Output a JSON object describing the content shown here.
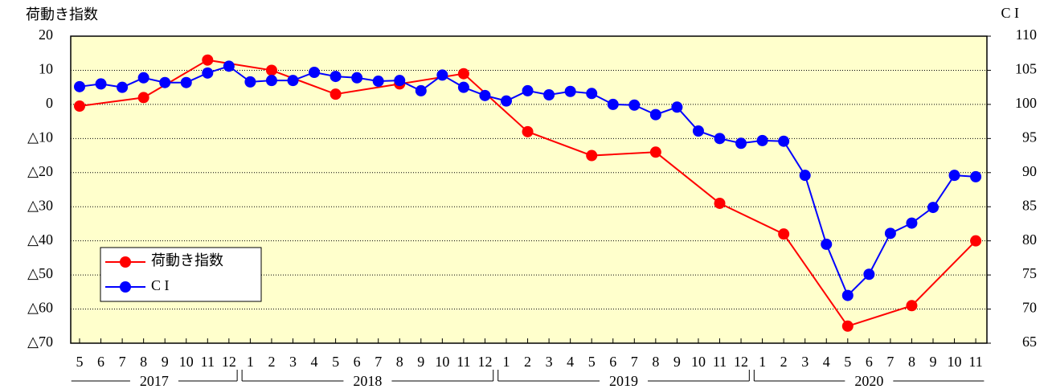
{
  "chart_data": {
    "type": "line",
    "y_label_left": "荷動き指数",
    "y_label_right": "C I",
    "x": [
      "2017-05",
      "2017-06",
      "2017-07",
      "2017-08",
      "2017-09",
      "2017-10",
      "2017-11",
      "2017-12",
      "2018-01",
      "2018-02",
      "2018-03",
      "2018-04",
      "2018-05",
      "2018-06",
      "2018-07",
      "2018-08",
      "2018-09",
      "2018-10",
      "2018-11",
      "2018-12",
      "2019-01",
      "2019-02",
      "2019-03",
      "2019-04",
      "2019-05",
      "2019-06",
      "2019-07",
      "2019-08",
      "2019-09",
      "2019-10",
      "2019-11",
      "2019-12",
      "2020-01",
      "2020-02",
      "2020-03",
      "2020-04",
      "2020-05",
      "2020-06",
      "2020-07",
      "2020-08",
      "2020-09",
      "2020-10",
      "2020-11"
    ],
    "xticks": [
      {
        "value": "2017-05",
        "label": "5"
      },
      {
        "value": "2017-06",
        "label": "6"
      },
      {
        "value": "2017-07",
        "label": "7"
      },
      {
        "value": "2017-08",
        "label": "8"
      },
      {
        "value": "2017-09",
        "label": "9"
      },
      {
        "value": "2017-10",
        "label": "10"
      },
      {
        "value": "2017-11",
        "label": "11"
      },
      {
        "value": "2017-12",
        "label": "12"
      },
      {
        "value": "2018-01",
        "label": "1"
      },
      {
        "value": "2018-02",
        "label": "2"
      },
      {
        "value": "2018-03",
        "label": "3"
      },
      {
        "value": "2018-04",
        "label": "4"
      },
      {
        "value": "2018-05",
        "label": "5"
      },
      {
        "value": "2018-06",
        "label": "6"
      },
      {
        "value": "2018-07",
        "label": "7"
      },
      {
        "value": "2018-08",
        "label": "8"
      },
      {
        "value": "2018-09",
        "label": "9"
      },
      {
        "value": "2018-10",
        "label": "10"
      },
      {
        "value": "2018-11",
        "label": "11"
      },
      {
        "value": "2018-12",
        "label": "12"
      },
      {
        "value": "2019-01",
        "label": "1"
      },
      {
        "value": "2019-02",
        "label": "2"
      },
      {
        "value": "2019-03",
        "label": "3"
      },
      {
        "value": "2019-04",
        "label": "4"
      },
      {
        "value": "2019-05",
        "label": "5"
      },
      {
        "value": "2019-06",
        "label": "6"
      },
      {
        "value": "2019-07",
        "label": "7"
      },
      {
        "value": "2019-08",
        "label": "8"
      },
      {
        "value": "2019-09",
        "label": "9"
      },
      {
        "value": "2019-10",
        "label": "10"
      },
      {
        "value": "2019-11",
        "label": "11"
      },
      {
        "value": "2019-12",
        "label": "12"
      },
      {
        "value": "2020-01",
        "label": "1"
      },
      {
        "value": "2020-02",
        "label": "2"
      },
      {
        "value": "2020-03",
        "label": "3"
      },
      {
        "value": "2020-04",
        "label": "4"
      },
      {
        "value": "2020-05",
        "label": "5"
      },
      {
        "value": "2020-06",
        "label": "6"
      },
      {
        "value": "2020-07",
        "label": "7"
      },
      {
        "value": "2020-08",
        "label": "8"
      },
      {
        "value": "2020-09",
        "label": "9"
      },
      {
        "value": "2020-10",
        "label": "10"
      },
      {
        "value": "2020-11",
        "label": "11"
      }
    ],
    "year_groups": [
      "2017",
      "2018",
      "2019",
      "2020"
    ],
    "ylim": [
      -70,
      20
    ],
    "yticks": [
      20,
      10,
      0,
      {
        "value": -10,
        "label": "△10"
      },
      {
        "value": -20,
        "label": "△20"
      },
      {
        "value": -30,
        "label": "△30"
      },
      {
        "value": -40,
        "label": "△40"
      },
      {
        "value": -50,
        "label": "△50"
      },
      {
        "value": -60,
        "label": "△60"
      },
      {
        "value": -70,
        "label": "△70"
      }
    ],
    "y2lim": [
      65,
      110
    ],
    "y2ticks": [
      65,
      70,
      75,
      80,
      85,
      90,
      95,
      100,
      105,
      110
    ],
    "grid": true,
    "legend": "lower left",
    "background": "#ffffcc",
    "series": [
      {
        "name": "荷動き指数",
        "color": "#ff0000",
        "x": [
          "2017-05",
          "2017-08",
          "2017-11",
          "2018-02",
          "2018-05",
          "2018-08",
          "2018-11",
          "2019-02",
          "2019-05",
          "2019-08",
          "2019-11",
          "2020-02",
          "2020-05",
          "2020-08",
          "2020-11"
        ],
        "values": [
          -0.5,
          2,
          13,
          10,
          3,
          6,
          9,
          -8,
          -15,
          -14,
          -29,
          -38,
          -65,
          -59,
          -40
        ]
      },
      {
        "name": "C I",
        "color": "#0000ff",
        "axis": "y2",
        "values": [
          102.6,
          103.0,
          102.5,
          103.9,
          103.2,
          103.2,
          104.6,
          105.6,
          103.3,
          103.5,
          103.5,
          104.7,
          104.1,
          103.9,
          103.4,
          103.5,
          102.0,
          104.3,
          102.5,
          101.3,
          100.5,
          102.0,
          101.4,
          101.9,
          101.6,
          100.0,
          99.9,
          98.5,
          99.6,
          96.1,
          95.0,
          94.3,
          94.7,
          94.6,
          89.6,
          79.5,
          72.0,
          75.1,
          81.1,
          82.6,
          84.9,
          89.6,
          89.4
        ]
      }
    ]
  }
}
